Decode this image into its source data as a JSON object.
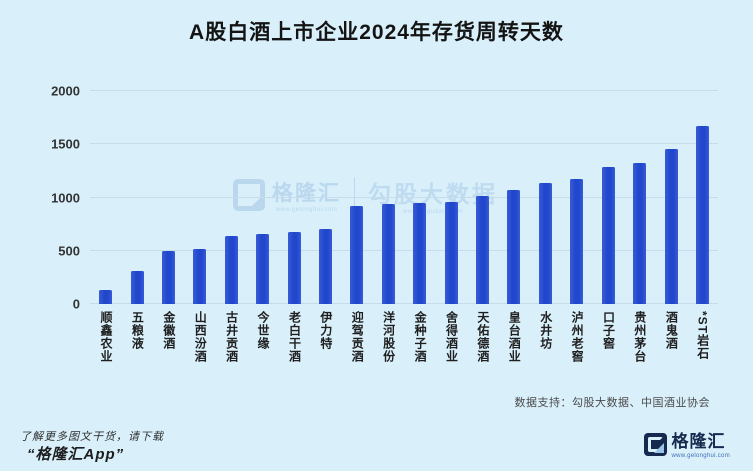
{
  "title": "A股白酒上市企业2024年存货周转天数",
  "chart_data": {
    "type": "bar",
    "title": "A股白酒上市企业2024年存货周转天数",
    "categories": [
      "顺鑫农业",
      "五粮液",
      "金徽酒",
      "山西汾酒",
      "古井贡酒",
      "今世缘",
      "老白干酒",
      "伊力特",
      "迎驾贡酒",
      "洋河股份",
      "金种子酒",
      "舍得酒业",
      "天佑德酒",
      "皇台酒业",
      "水井坊",
      "泸州老窖",
      "口子窖",
      "贵州茅台",
      "酒鬼酒",
      "*ST岩石"
    ],
    "values": [
      135,
      310,
      500,
      520,
      640,
      655,
      680,
      705,
      920,
      935,
      945,
      960,
      1015,
      1075,
      1140,
      1170,
      1290,
      1325,
      1460,
      1675
    ],
    "xlabel": "",
    "ylabel": "",
    "ylim": [
      0,
      2000
    ],
    "yticks": [
      0,
      500,
      1000,
      1500,
      2000
    ],
    "grid": true,
    "legend": false,
    "bar_color": "#2148cc",
    "source_note": "数据支持：勾股大数据、中国酒业协会"
  },
  "watermark": {
    "brand": "格隆汇",
    "brand_url": "www.gelonghui.com",
    "partner": "勾股大数据",
    "partner_url": "www.gogudata.com"
  },
  "footer": {
    "line1": "了解更多图文干货，请下载",
    "line2": "“格隆汇App”",
    "logo_text": "格隆汇",
    "logo_url": "www.gelonghui.com"
  },
  "colors": {
    "background": "#d9f0fb",
    "bar": "#2148cc",
    "gridline": "#c6dcea",
    "title_text": "#141414",
    "axis_text": "#333333",
    "watermark": "#b3d2ec",
    "logo_navy": "#16294e"
  }
}
